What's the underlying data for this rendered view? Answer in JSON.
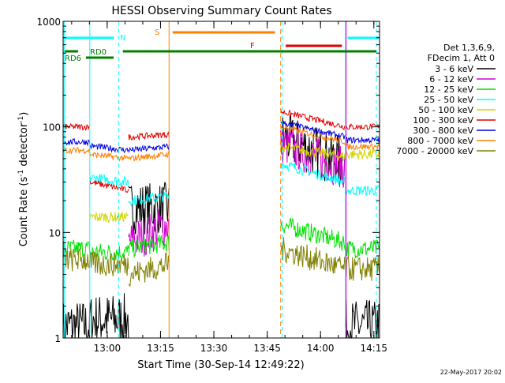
{
  "chart_data": {
    "type": "line",
    "title": "HESSI Observing Summary Count Rates",
    "ylabel_main": "Count Rate (s",
    "ylabel_sup": "-1",
    "ylabel_mid": " detector",
    "ylabel_end": ")",
    "xlabel": "Start Time (30-Sep-14 12:49:22)",
    "footer_date": "22-May-2017 20:02",
    "y_scale": "log",
    "ylim": [
      1,
      1000
    ],
    "y_ticks": [
      {
        "v": 1,
        "label": "1"
      },
      {
        "v": 10,
        "label": "10"
      },
      {
        "v": 100,
        "label": "100"
      },
      {
        "v": 1000,
        "label": "1000"
      }
    ],
    "xlim_min": [
      -1.8,
      87.2
    ],
    "x_ticks": [
      {
        "m": 10.6,
        "label": "13:00"
      },
      {
        "m": 25.6,
        "label": "13:15"
      },
      {
        "m": 40.6,
        "label": "13:30"
      },
      {
        "m": 55.6,
        "label": "13:45"
      },
      {
        "m": 70.6,
        "label": "14:00"
      },
      {
        "m": 85.6,
        "label": "14:15"
      }
    ],
    "legend_header": [
      "Det 1,3,6,9,",
      "FDecim 1, Att 0"
    ],
    "series": [
      {
        "name": "3 - 6 keV",
        "color": "#000000"
      },
      {
        "name": "6 - 12 keV",
        "color": "#d400d4"
      },
      {
        "name": "12 - 25 keV",
        "color": "#00e000"
      },
      {
        "name": "25 - 50 keV",
        "color": "#00ffff"
      },
      {
        "name": "50 - 100 keV",
        "color": "#d4d400"
      },
      {
        "name": "100 - 300 keV",
        "color": "#e00000"
      },
      {
        "name": "300 - 800 keV",
        "color": "#0000e0"
      },
      {
        "name": "800 - 7000 keV",
        "color": "#ff8000"
      },
      {
        "name": "7000 - 20000 keV",
        "color": "#808000"
      }
    ],
    "flag_labels": {
      "N": "N",
      "S": "S",
      "F": "F",
      "RD0": "RD0",
      "RD6": "RD6"
    }
  }
}
